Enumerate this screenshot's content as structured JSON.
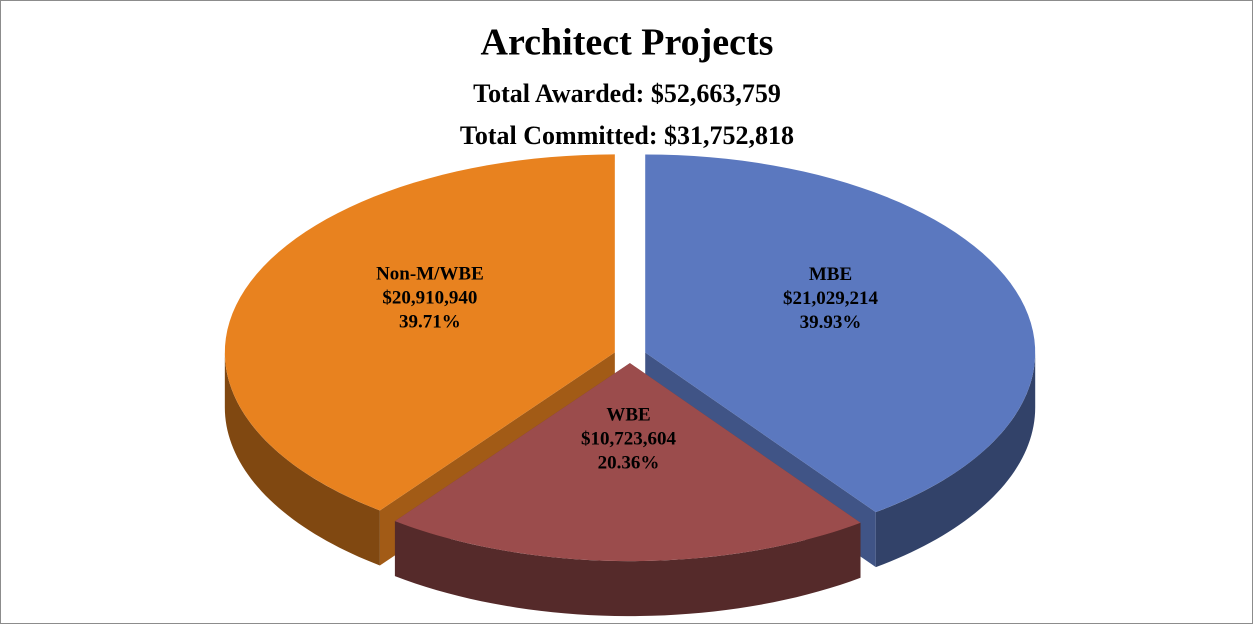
{
  "chart_data": {
    "type": "pie3d",
    "title": "Architect Projects",
    "subtitles": [
      "Total Awarded: $52,663,759",
      "Total Committed: $31,752,818"
    ],
    "categories": [
      "MBE",
      "WBE",
      "Non-M/WBE"
    ],
    "values": [
      39.93,
      20.36,
      39.71
    ],
    "value_labels": [
      "39.93%",
      "20.36%",
      "39.71%"
    ],
    "amount_labels": [
      "$21,029,214",
      "$10,723,604",
      "$20,910,940"
    ],
    "colors": [
      "#5b78bf",
      "#9b4c4c",
      "#e8821f"
    ]
  }
}
